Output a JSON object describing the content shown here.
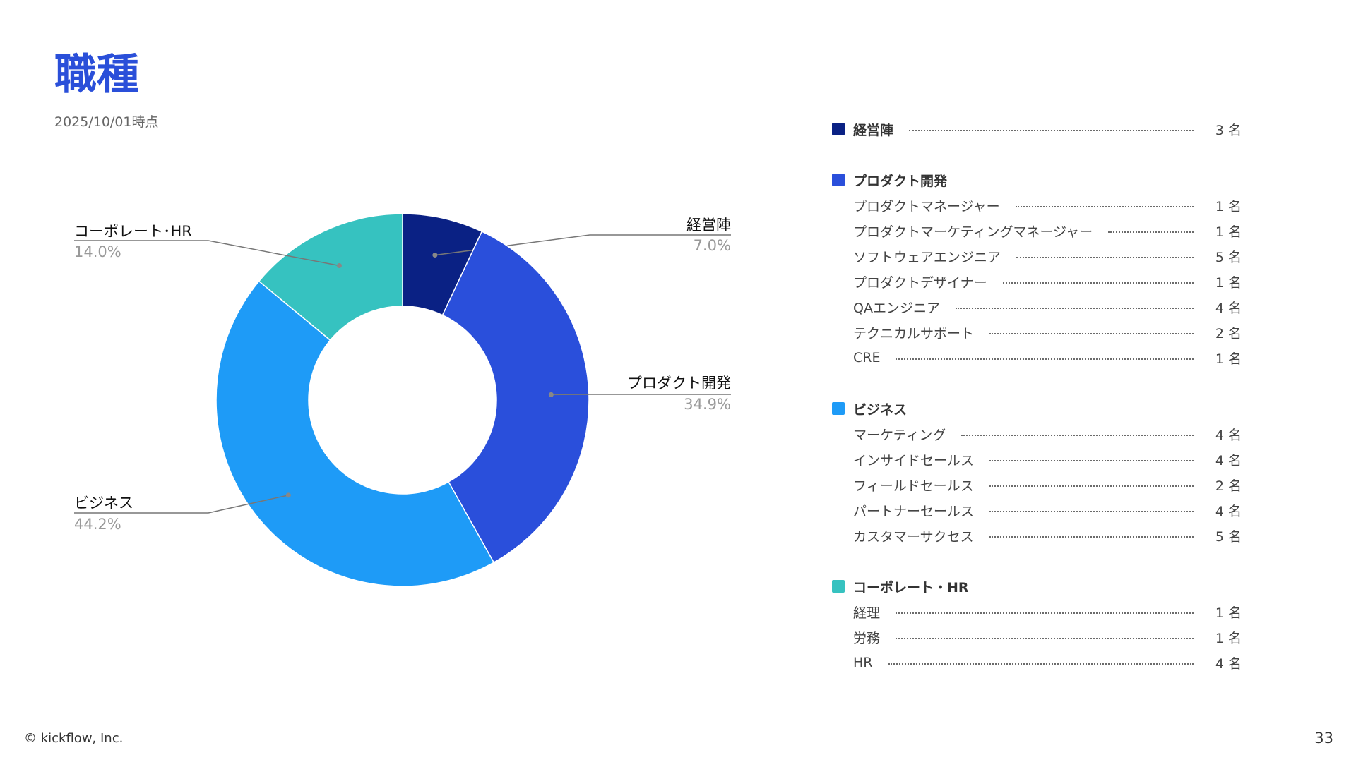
{
  "page": {
    "title": "職種",
    "date": "2025/10/01時点",
    "copyright": "© kickflow, Inc.",
    "page_number": "33"
  },
  "colors": {
    "title": "#2a4fd9",
    "executives": "#0a2184",
    "product": "#2a4fdb",
    "business": "#1e9bf7",
    "corporate": "#36c2c0"
  },
  "chart_data": {
    "type": "pie",
    "donut": true,
    "slices": [
      {
        "name": "経営陣",
        "value": 7.0,
        "label": "7.0%",
        "color": "#0a2184"
      },
      {
        "name": "プロダクト開発",
        "value": 34.9,
        "label": "34.9%",
        "color": "#2a4fdb"
      },
      {
        "name": "ビジネス",
        "value": 44.2,
        "label": "44.2%",
        "color": "#1e9bf7"
      },
      {
        "name": "コーポレート･HR",
        "value": 14.0,
        "label": "14.0%",
        "color": "#36c2c0"
      }
    ]
  },
  "legend": [
    {
      "name": "経営陣",
      "count": "3 名",
      "color": "#0a2184",
      "items": []
    },
    {
      "name": "プロダクト開発",
      "count": "",
      "color": "#2a4fdb",
      "items": [
        {
          "label": "プロダクトマネージャー",
          "count": "1 名"
        },
        {
          "label": "プロダクトマーケティングマネージャー",
          "count": "1 名"
        },
        {
          "label": "ソフトウェアエンジニア",
          "count": "5 名"
        },
        {
          "label": "プロダクトデザイナー",
          "count": "1 名"
        },
        {
          "label": "QAエンジニア",
          "count": "4 名"
        },
        {
          "label": "テクニカルサポート",
          "count": "2 名"
        },
        {
          "label": "CRE",
          "count": "1 名"
        }
      ]
    },
    {
      "name": "ビジネス",
      "count": "",
      "color": "#1e9bf7",
      "items": [
        {
          "label": "マーケティング",
          "count": "4 名"
        },
        {
          "label": "インサイドセールス",
          "count": "4 名"
        },
        {
          "label": "フィールドセールス",
          "count": "2 名"
        },
        {
          "label": "パートナーセールス",
          "count": "4 名"
        },
        {
          "label": "カスタマーサクセス",
          "count": "5 名"
        }
      ]
    },
    {
      "name": "コーポレート・HR",
      "count": "",
      "color": "#36c2c0",
      "items": [
        {
          "label": "経理",
          "count": "1 名"
        },
        {
          "label": "労務",
          "count": "1 名"
        },
        {
          "label": "HR",
          "count": "4 名"
        }
      ]
    }
  ]
}
